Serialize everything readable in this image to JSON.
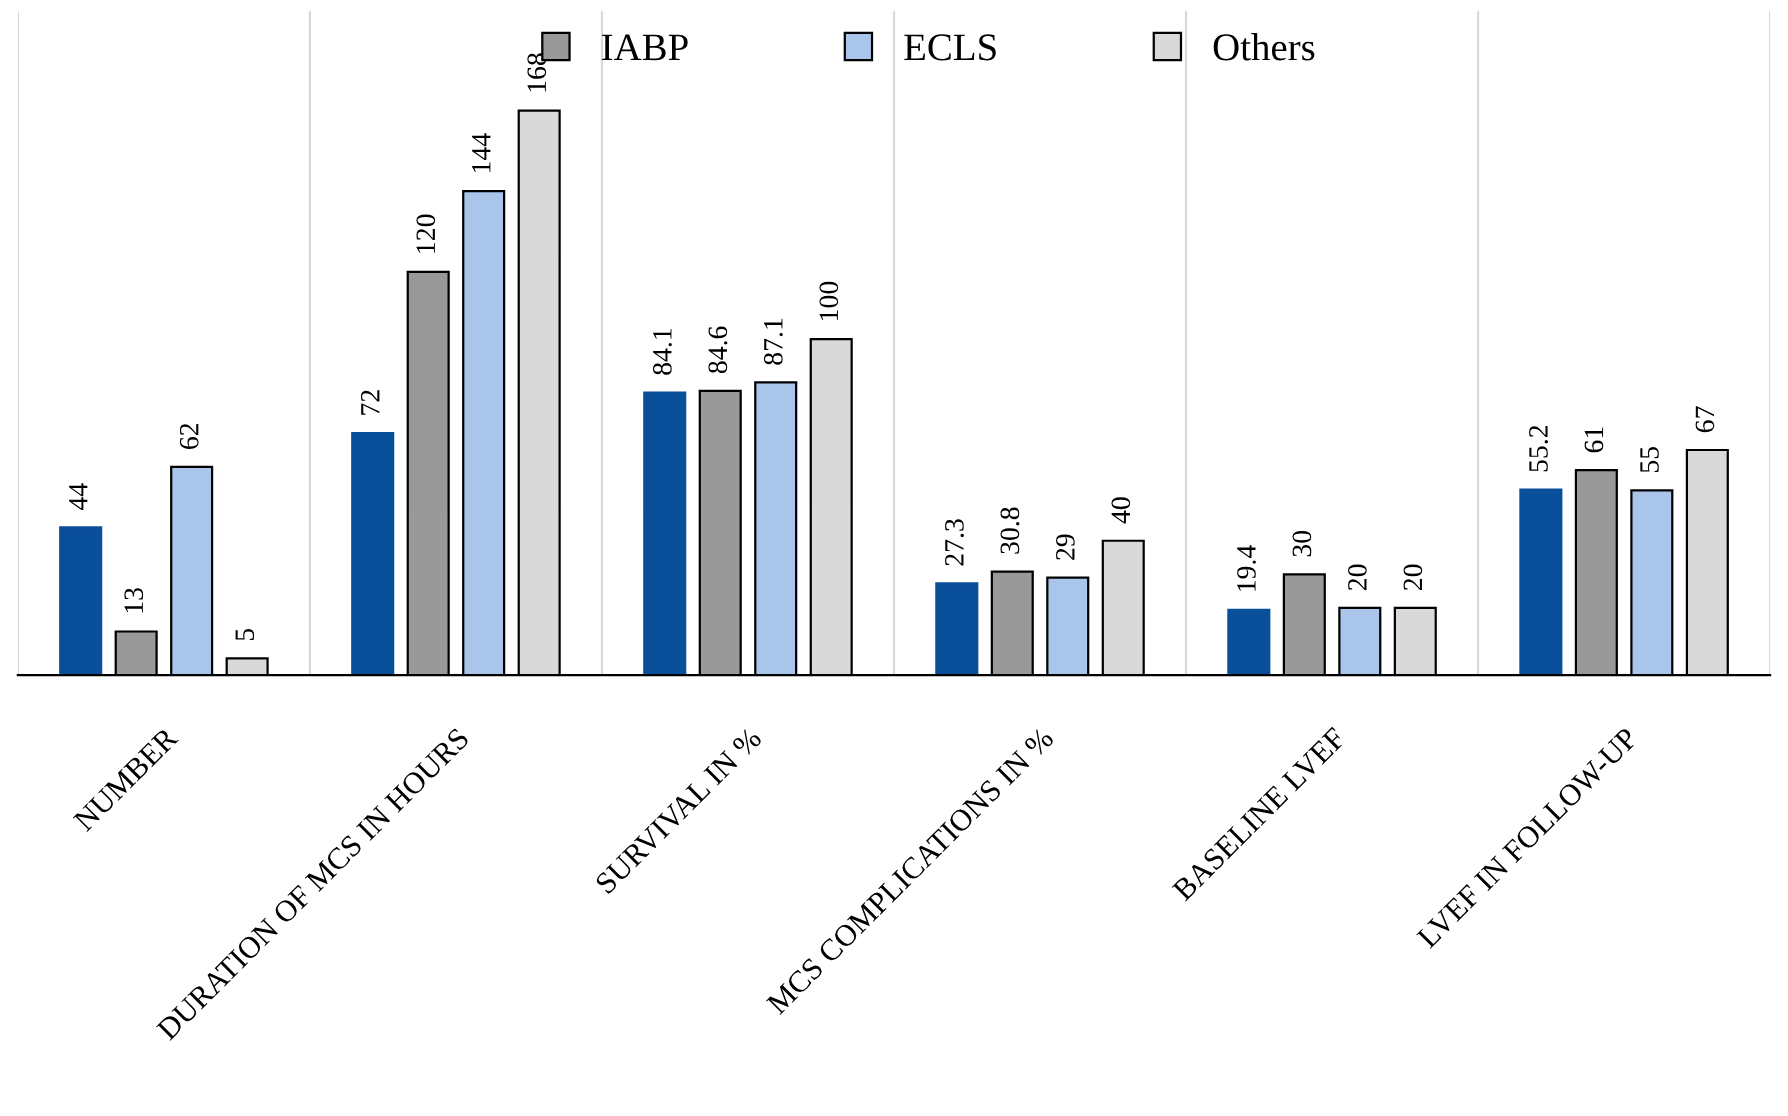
{
  "chart_data": {
    "type": "bar",
    "categories": [
      "NUMBER",
      "DURATION OF MCS IN HOURS",
      "SURVIVAL IN %",
      "MCS COMPLICATIONS IN %",
      "BASELINE LVEF",
      "LVEF IN FOLLOW-UP"
    ],
    "series": [
      {
        "color": "#0a4f9a",
        "values": [
          44,
          72,
          84.1,
          27.3,
          19.4,
          55.2
        ]
      },
      {
        "name": "IABP",
        "color": "#999999",
        "values": [
          13,
          120,
          84.6,
          30.8,
          30,
          61
        ]
      },
      {
        "name": "ECLS",
        "color": "#a9c6ea",
        "values": [
          62,
          144,
          87.1,
          29,
          20,
          55
        ]
      },
      {
        "name": "Others",
        "color": "#d9d9d9",
        "values": [
          5,
          168,
          100,
          40,
          20,
          67
        ]
      }
    ],
    "data_labels": true,
    "grid": "x",
    "legend": "top"
  }
}
